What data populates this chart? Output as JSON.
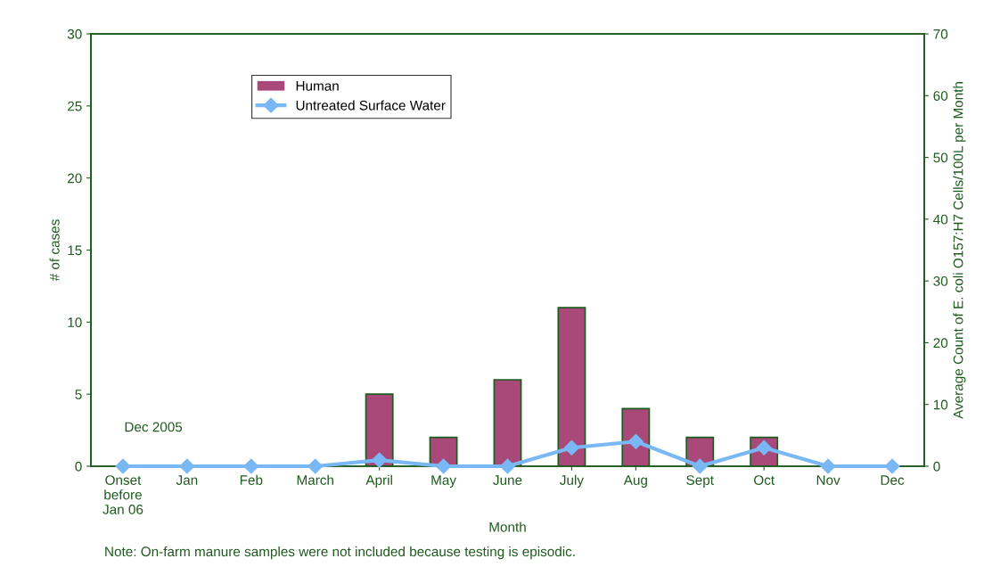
{
  "chart_data": {
    "type": "bar",
    "xlabel": "Month",
    "ylabel": "# of cases",
    "y2label": "Average Count of E. coli O157:H7 Cells/100L per Month",
    "categories": [
      "Onset\nbefore\nJan 06",
      "Jan",
      "Feb",
      "March",
      "April",
      "May",
      "June",
      "July",
      "Aug",
      "Sept",
      "Oct",
      "Nov",
      "Dec"
    ],
    "series": [
      {
        "name": "Human",
        "color": "#a8497a",
        "values": [
          0,
          0,
          0,
          0,
          5,
          2,
          6,
          11,
          4,
          2,
          2,
          0,
          0
        ]
      },
      {
        "name": "Untreated Surface Water",
        "type": "line",
        "axis": "y2",
        "color": "#7ab8f5",
        "marker": "diamond",
        "values": [
          0,
          0,
          0,
          0,
          1,
          0,
          0,
          3,
          4,
          0,
          3,
          0,
          0
        ]
      }
    ],
    "ylim": [
      0,
      30
    ],
    "yticks": [
      0,
      5,
      10,
      15,
      20,
      25,
      30
    ],
    "y2lim": [
      0,
      70
    ],
    "y2ticks": [
      0,
      10,
      20,
      30,
      40,
      50,
      60,
      70
    ],
    "grid": false,
    "legend": "top left",
    "annotations": [
      "Dec 2005",
      "Note: On-farm manure samples were not included because testing is episodic."
    ]
  }
}
